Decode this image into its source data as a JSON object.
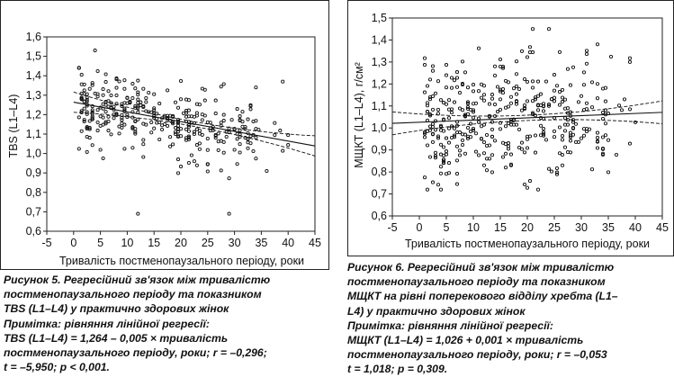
{
  "chart_data": [
    {
      "type": "scatter",
      "ylabel": "TBS (L1–L4)",
      "xlabel": "Тривалість постменопаузального періоду, роки",
      "xlim": [
        -5,
        45
      ],
      "ylim": [
        0.6,
        1.6
      ],
      "xticks": [
        "-5",
        "0",
        "5",
        "10",
        "15",
        "20",
        "25",
        "30",
        "35",
        "40",
        "45"
      ],
      "yticks": [
        "0,6",
        "0,7",
        "0,8",
        "0,9",
        "1,0",
        "1,1",
        "1,2",
        "1,3",
        "1,4",
        "1,5",
        "1,6"
      ],
      "grid": false,
      "regression": {
        "intercept": 1.264,
        "slope": -0.005,
        "x_range": [
          0,
          45
        ],
        "ci_halfwidth_at_ends": [
          0.03,
          0.04
        ]
      },
      "points_note": "approximately 350 points, x from 1 to 40, y from 0.69 to 1.53",
      "points": []
    },
    {
      "type": "scatter",
      "ylabel": "МЩКТ (L1–L4), г/см²",
      "xlabel": "Тривалість постменопаузального періоду, роки",
      "xlim": [
        -5,
        45
      ],
      "ylim": [
        0.6,
        1.5
      ],
      "xticks": [
        "-5",
        "0",
        "5",
        "10",
        "15",
        "20",
        "25",
        "30",
        "35",
        "40",
        "45"
      ],
      "yticks": [
        "0,6",
        "0,7",
        "0,8",
        "0,9",
        "1,0",
        "1,1",
        "1,2",
        "1,3",
        "1,4",
        "1,5"
      ],
      "grid": false,
      "regression": {
        "intercept": 1.026,
        "slope": 0.001,
        "x_range": [
          -5,
          45
        ],
        "ci_halfwidth_at_ends": [
          0.03,
          0.04
        ]
      },
      "points": []
    }
  ],
  "figure5": {
    "caption_lines": [
      "Рисунок 5. Регресійний зв'язок між тривалістю",
      "постменопаузального періоду та показником",
      "TBS (L1–L4) у практично здорових жінок",
      "Примітка: рівняння лінійної регресії:",
      "TBS (L1–L4) = 1,264 – 0,005 × тривалість",
      "постменопаузального періоду, роки; r = –0,296;",
      "t = –5,950; p < 0,001."
    ]
  },
  "figure6": {
    "caption_lines": [
      "Рисунок 6. Регресійний зв'язок між тривалістю",
      "постменопаузального періоду та показником",
      "МЩКТ на рівні поперекового відділу хребта (L1–",
      "L4) у практично здорових жінок",
      "Примітка: рівняння лінійної регресії:",
      "МЩКТ (L1–L4) = 1,026 + 0,001 × тривалість",
      "постменопаузального періоду, роки; r = –0,053",
      "t = 1,018; p = 0,309."
    ]
  }
}
